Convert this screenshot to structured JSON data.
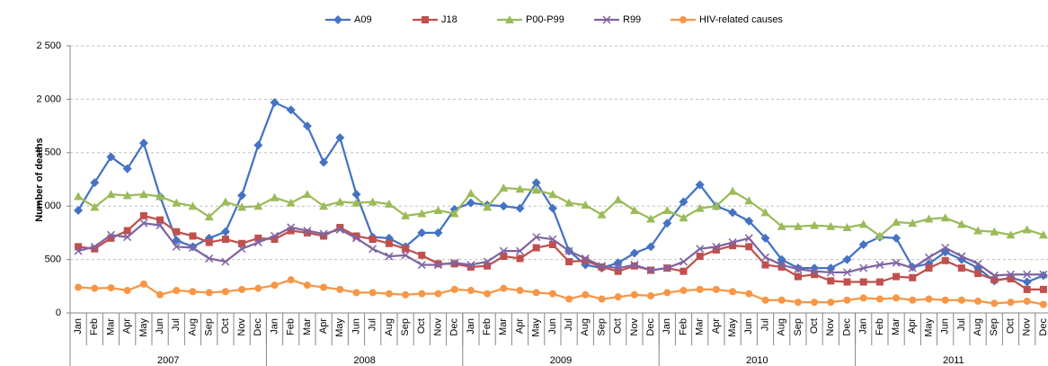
{
  "chart_data": {
    "type": "line",
    "y_label": "Number of deaths",
    "categories": [
      "Jan",
      "Feb",
      "Mar",
      "Apr",
      "May",
      "Jun",
      "Jul",
      "Aug",
      "Sep",
      "Oct",
      "Nov",
      "Dec",
      "Jan",
      "Feb",
      "Mar",
      "Apr",
      "May",
      "Jun",
      "Jul",
      "Aug",
      "Sep",
      "Oct",
      "Nov",
      "Dec",
      "Jan",
      "Feb",
      "Mar",
      "Apr",
      "May",
      "Jun",
      "Jul",
      "Aug",
      "Sep",
      "Oct",
      "Nov",
      "Dec",
      "Jan",
      "Feb",
      "Mar",
      "Apr",
      "May",
      "Jun",
      "Jul",
      "Aug",
      "Sep",
      "Oct",
      "Nov",
      "Dec",
      "Jan",
      "Feb",
      "Mar",
      "Apr",
      "May",
      "Jun",
      "Jul",
      "Aug",
      "Sep",
      "Oct",
      "Nov",
      "Dec"
    ],
    "years": [
      "2007",
      "2008",
      "2009",
      "2010",
      "2011"
    ],
    "ylim": [
      0,
      2500
    ],
    "yticks": [
      0,
      500,
      {
        "value": 1000,
        "label": "1 000"
      },
      {
        "value": 1500,
        "label": "1 500"
      },
      {
        "value": 2000,
        "label": "2 000"
      },
      {
        "value": 2500,
        "label": "2 500"
      }
    ],
    "grid": true,
    "legend": "top",
    "series": [
      {
        "name": "A09",
        "color": "#4472c4",
        "marker": "diamond",
        "values": [
          960,
          1220,
          1460,
          1350,
          1590,
          1090,
          680,
          620,
          700,
          760,
          1100,
          1570,
          1970,
          1900,
          1750,
          1410,
          1640,
          1110,
          710,
          700,
          620,
          750,
          750,
          970,
          1030,
          1010,
          1000,
          980,
          1220,
          980,
          580,
          450,
          420,
          470,
          560,
          620,
          840,
          1040,
          1200,
          1000,
          940,
          860,
          700,
          500,
          420,
          420,
          420,
          500,
          640,
          710,
          700,
          430,
          460,
          570,
          500,
          420,
          300,
          330,
          290,
          350
        ]
      },
      {
        "name": "J18",
        "color": "#c0504d",
        "marker": "square",
        "values": [
          620,
          600,
          700,
          770,
          910,
          870,
          760,
          720,
          660,
          690,
          650,
          700,
          690,
          770,
          750,
          720,
          800,
          720,
          690,
          650,
          600,
          540,
          460,
          460,
          430,
          440,
          530,
          510,
          610,
          640,
          480,
          490,
          430,
          390,
          440,
          400,
          420,
          390,
          530,
          590,
          630,
          620,
          450,
          430,
          340,
          360,
          300,
          290,
          290,
          290,
          340,
          330,
          420,
          490,
          420,
          370,
          310,
          320,
          220,
          220
        ]
      },
      {
        "name": "P00-P99",
        "color": "#9bbb59",
        "marker": "triangle",
        "values": [
          1090,
          990,
          1110,
          1100,
          1110,
          1090,
          1030,
          1000,
          900,
          1040,
          990,
          1000,
          1080,
          1030,
          1110,
          1000,
          1040,
          1030,
          1040,
          1020,
          910,
          930,
          960,
          930,
          1120,
          990,
          1170,
          1160,
          1150,
          1110,
          1030,
          1010,
          920,
          1060,
          960,
          880,
          960,
          890,
          980,
          1000,
          1140,
          1050,
          940,
          810,
          810,
          820,
          810,
          800,
          830,
          720,
          850,
          840,
          880,
          890,
          830,
          770,
          760,
          730,
          780,
          730
        ]
      },
      {
        "name": "R99",
        "color": "#8064a2",
        "marker": "x",
        "values": [
          580,
          620,
          730,
          710,
          840,
          820,
          620,
          610,
          510,
          480,
          600,
          660,
          720,
          800,
          770,
          740,
          780,
          700,
          600,
          530,
          540,
          450,
          450,
          470,
          450,
          480,
          580,
          580,
          710,
          690,
          580,
          510,
          440,
          420,
          450,
          400,
          420,
          480,
          600,
          620,
          660,
          700,
          520,
          450,
          410,
          390,
          380,
          380,
          420,
          450,
          470,
          420,
          520,
          610,
          530,
          460,
          350,
          360,
          360,
          360
        ]
      },
      {
        "name": "HIV-related causes",
        "color": "#f79646",
        "marker": "circle",
        "values": [
          240,
          230,
          235,
          210,
          270,
          170,
          210,
          200,
          190,
          200,
          220,
          230,
          260,
          310,
          260,
          240,
          220,
          190,
          190,
          180,
          170,
          180,
          180,
          220,
          210,
          180,
          230,
          210,
          190,
          180,
          130,
          170,
          130,
          150,
          170,
          160,
          190,
          210,
          220,
          220,
          200,
          180,
          120,
          120,
          100,
          100,
          100,
          120,
          140,
          130,
          140,
          120,
          130,
          120,
          120,
          110,
          90,
          100,
          110,
          80
        ]
      }
    ]
  }
}
